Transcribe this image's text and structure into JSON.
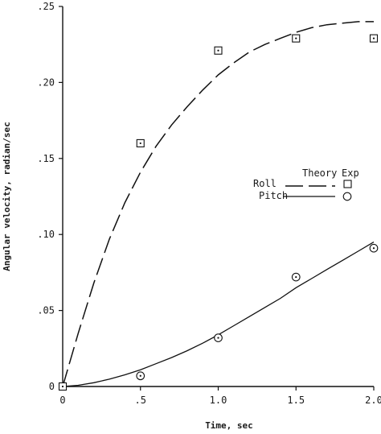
{
  "chart_data": {
    "type": "scatter",
    "xlabel": "Time, sec",
    "ylabel": "Angular velocity, radian/sec",
    "xlim": [
      0,
      2.0
    ],
    "ylim": [
      0,
      0.25
    ],
    "x_ticks": [
      {
        "value": 0,
        "label": "0"
      },
      {
        "value": 0.5,
        "label": ".5"
      },
      {
        "value": 1.0,
        "label": "1.0"
      },
      {
        "value": 1.5,
        "label": "1.5"
      },
      {
        "value": 2.0,
        "label": "2.0"
      }
    ],
    "y_ticks": [
      {
        "value": 0,
        "label": "0"
      },
      {
        "value": 0.05,
        "label": ".05"
      },
      {
        "value": 0.1,
        "label": ".10"
      },
      {
        "value": 0.15,
        "label": ".15"
      },
      {
        "value": 0.2,
        "label": ".20"
      },
      {
        "value": 0.25,
        "label": ".25"
      }
    ],
    "grid": false,
    "legend": {
      "placement": "right-middle",
      "theory_header": "Theory",
      "exp_header": "Exp",
      "entries": [
        {
          "name": "Roll",
          "theory_style": "dashed",
          "exp_marker": "square"
        },
        {
          "name": "Pitch",
          "theory_style": "solid",
          "exp_marker": "circle"
        }
      ]
    },
    "series": [
      {
        "name": "Roll",
        "kind": "theory",
        "style": "dashed",
        "x": [
          0,
          0.1,
          0.2,
          0.3,
          0.4,
          0.5,
          0.6,
          0.7,
          0.8,
          0.9,
          1.0,
          1.1,
          1.2,
          1.3,
          1.4,
          1.5,
          1.6,
          1.7,
          1.8,
          1.9,
          2.0
        ],
        "y": [
          0,
          0.035,
          0.068,
          0.097,
          0.121,
          0.141,
          0.158,
          0.172,
          0.184,
          0.195,
          0.205,
          0.213,
          0.22,
          0.225,
          0.229,
          0.233,
          0.236,
          0.238,
          0.239,
          0.24,
          0.24
        ]
      },
      {
        "name": "Roll",
        "kind": "experiment",
        "marker": "square",
        "x": [
          0,
          0.5,
          1.0,
          1.5,
          2.0
        ],
        "y": [
          0,
          0.16,
          0.221,
          0.229,
          0.229
        ]
      },
      {
        "name": "Pitch",
        "kind": "theory",
        "style": "solid",
        "x": [
          0,
          0.1,
          0.2,
          0.3,
          0.4,
          0.5,
          0.6,
          0.7,
          0.8,
          0.9,
          1.0,
          1.1,
          1.2,
          1.3,
          1.4,
          1.5,
          1.6,
          1.7,
          1.8,
          1.9,
          2.0
        ],
        "y": [
          0,
          0.0008,
          0.0025,
          0.0048,
          0.0077,
          0.011,
          0.015,
          0.019,
          0.0235,
          0.0285,
          0.034,
          0.04,
          0.046,
          0.052,
          0.058,
          0.065,
          0.071,
          0.077,
          0.083,
          0.089,
          0.095
        ]
      },
      {
        "name": "Pitch",
        "kind": "experiment",
        "marker": "circle",
        "x": [
          0.5,
          1.0,
          1.5,
          2.0
        ],
        "y": [
          0.007,
          0.032,
          0.072,
          0.091
        ]
      }
    ]
  }
}
